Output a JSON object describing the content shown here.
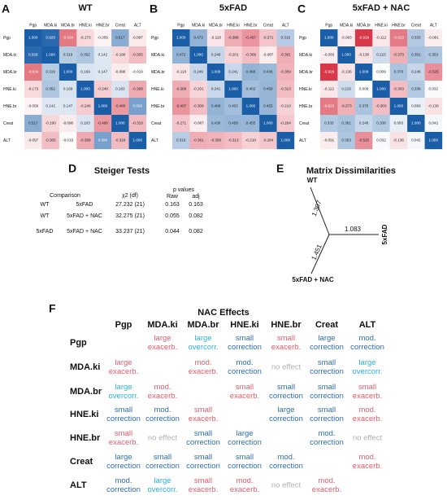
{
  "chart_data": [
    {
      "type": "heatmap",
      "panel": "A",
      "title": "WT",
      "categories": [
        "Pgp",
        "MDA.ki",
        "MDA.br",
        "HNE.ki",
        "HNE.br",
        "Creat",
        "ALT"
      ],
      "values": [
        [
          1,
          0.929,
          -0.634,
          -0.173,
          -0.056,
          0.517,
          -0.097
        ],
        [
          0.929,
          1,
          0.319,
          0.352,
          0.142,
          -0.19,
          -0.305
        ],
        [
          -0.634,
          0.319,
          1,
          0.169,
          0.147,
          -0.096,
          -0.019
        ],
        [
          -0.173,
          0.352,
          0.169,
          1,
          -0.24,
          0.163,
          -0.399
        ],
        [
          -0.056,
          0.142,
          0.147,
          -0.24,
          1,
          -0.48,
          0.59
        ],
        [
          0.517,
          -0.19,
          -0.096,
          0.163,
          -0.48,
          1,
          -0.318
        ],
        [
          -0.097,
          -0.305,
          -0.019,
          -0.399,
          0.59,
          -0.318,
          1
        ]
      ],
      "value_labels": [
        [
          "1.000",
          "0.929",
          "-0.634",
          "-0.173",
          "-0.056",
          "0.517",
          "-0.097"
        ],
        [
          "0.929",
          "1.000",
          "0.319",
          "0.352",
          "0.142",
          "-0.190",
          "-0.305"
        ],
        [
          "-0.634",
          "0.319",
          "1.000",
          "0.169",
          "0.147",
          "-0.096",
          "-0.019"
        ],
        [
          "-0.173",
          "0.352",
          "0.169",
          "1.000",
          "-0.240",
          "0.163",
          "-0.399"
        ],
        [
          "-0.056",
          "0.142",
          "0.147",
          "-0.240",
          "1.000",
          "-0.480",
          "0.590"
        ],
        [
          "0.517",
          "-0.190",
          "-0.096",
          "0.163",
          "-0.480",
          "1.000",
          "-0.318"
        ],
        [
          "-0.097",
          "-0.305",
          "-0.019",
          "-0.399",
          "0.590",
          "-0.318",
          "1.000"
        ]
      ],
      "zlim": [
        -1,
        1
      ],
      "colors": {
        "negative": "#d42a3c",
        "positive": "#1a5ea8"
      }
    },
    {
      "type": "heatmap",
      "panel": "B",
      "title": "5xFAD",
      "categories": [
        "Pgp",
        "MDA.ki",
        "MDA.br",
        "HNE.ki",
        "HNE.br",
        "Creat",
        "ALT"
      ],
      "values": [
        [
          1,
          0.472,
          -0.118,
          -0.388,
          -0.497,
          -0.271,
          0.316
        ],
        [
          0.472,
          1,
          0.249,
          -0.201,
          -0.309,
          -0.087,
          -0.381
        ],
        [
          -0.118,
          0.249,
          1,
          0.241,
          0.468,
          0.436,
          -0.359
        ],
        [
          -0.388,
          -0.201,
          0.241,
          1,
          0.402,
          0.458,
          -0.313
        ],
        [
          -0.497,
          -0.309,
          0.468,
          0.402,
          1,
          0.455,
          -0.21
        ],
        [
          -0.271,
          -0.087,
          0.436,
          0.458,
          0.455,
          1,
          -0.264
        ],
        [
          0.316,
          -0.381,
          -0.359,
          -0.313,
          -0.21,
          -0.264,
          1
        ]
      ],
      "value_labels": [
        [
          "1.000",
          "0.472",
          "-0.118",
          "-0.388",
          "-0.497",
          "-0.271",
          "0.316"
        ],
        [
          "0.472",
          "1.000",
          "0.249",
          "-0.201",
          "-0.309",
          "-0.087",
          "-0.381"
        ],
        [
          "-0.118",
          "0.249",
          "1.000",
          "0.241",
          "0.468",
          "0.436",
          "-0.359"
        ],
        [
          "-0.388",
          "-0.201",
          "0.241",
          "1.000",
          "0.402",
          "0.458",
          "-0.313"
        ],
        [
          "-0.497",
          "-0.309",
          "0.468",
          "0.402",
          "1.000",
          "0.455",
          "-0.210"
        ],
        [
          "-0.271",
          "-0.087",
          "0.436",
          "0.458",
          "0.455",
          "1.000",
          "-0.264"
        ],
        [
          "0.316",
          "-0.381",
          "-0.359",
          "-0.313",
          "-0.210",
          "-0.264",
          "1.000"
        ]
      ],
      "zlim": [
        -1,
        1
      ],
      "colors": {
        "negative": "#d42a3c",
        "positive": "#1a5ea8"
      }
    },
    {
      "type": "heatmap",
      "panel": "C",
      "title": "5xFAD + NAC",
      "categories": [
        "Pgp",
        "MDA.ki",
        "MDA.br",
        "HNE.ki",
        "HNE.br",
        "Creat",
        "ALT"
      ],
      "values": [
        [
          1,
          -0.083,
          -0.929,
          -0.112,
          -0.623,
          0.333,
          -0.091
        ],
        [
          -0.083,
          1,
          -0.136,
          0.215,
          -0.373,
          0.381,
          0.353
        ],
        [
          -0.929,
          -0.136,
          1,
          0.009,
          0.37,
          0.246,
          -0.525
        ],
        [
          -0.112,
          0.215,
          0.009,
          1,
          -0.303,
          0.338,
          0.032
        ],
        [
          -0.623,
          -0.373,
          0.37,
          -0.303,
          1,
          0.093,
          -0.136
        ],
        [
          0.333,
          0.381,
          0.246,
          0.338,
          0.093,
          1,
          0.042
        ],
        [
          -0.091,
          0.353,
          -0.525,
          0.032,
          -0.136,
          0.042,
          1
        ]
      ],
      "value_labels": [
        [
          "1.000",
          "-0.083",
          "-0.929",
          "-0.112",
          "-0.623",
          "0.333",
          "-0.091"
        ],
        [
          "-0.083",
          "1.000",
          "-0.136",
          "0.215",
          "-0.373",
          "0.381",
          "0.353"
        ],
        [
          "-0.929",
          "-0.136",
          "1.000",
          "0.009",
          "0.370",
          "0.246",
          "-0.525"
        ],
        [
          "-0.112",
          "0.215",
          "0.009",
          "1.000",
          "-0.303",
          "0.338",
          "0.032"
        ],
        [
          "-0.623",
          "-0.373",
          "0.370",
          "-0.303",
          "1.000",
          "0.093",
          "-0.136"
        ],
        [
          "0.333",
          "0.381",
          "0.246",
          "0.338",
          "0.093",
          "1.000",
          "0.042"
        ],
        [
          "-0.091",
          "0.353",
          "-0.525",
          "0.032",
          "-0.136",
          "0.042",
          "1.000"
        ]
      ],
      "zlim": [
        -1,
        1
      ],
      "colors": {
        "negative": "#d42a3c",
        "positive": "#1a5ea8"
      }
    }
  ],
  "steiger": {
    "panel": "D",
    "title": "Steiger Tests",
    "header": [
      "Comparison",
      "χ2 (df)",
      "p values",
      "Raw",
      "adj"
    ],
    "rows": [
      [
        "WT",
        "5xFAD",
        "27.232 (21)",
        "0.163",
        "0.163"
      ],
      [
        "WT",
        "5xFAD + NAC",
        "32.275 (21)",
        "0.055",
        "0.082"
      ],
      [
        "5xFAD",
        "5xFAD + NAC",
        "33.237 (21)",
        "0.044",
        "0.082"
      ]
    ]
  },
  "dissimilarities": {
    "panel": "E",
    "title": "Matrix Dissimilarities",
    "nodes": [
      "WT",
      "5xFAD",
      "5xFAD + NAC"
    ],
    "edges": [
      "1.307",
      "1.083",
      "1.451"
    ]
  },
  "nac_effects": {
    "panel": "F",
    "title": "NAC Effects",
    "columns": [
      "Pgp",
      "MDA.ki",
      "MDA.br",
      "HNE.ki",
      "HNE.br",
      "Creat",
      "ALT"
    ],
    "rows": [
      "Pgp",
      "MDA.ki",
      "MDA.br",
      "HNE.ki",
      "HNE.br",
      "Creat",
      "ALT"
    ],
    "cells": [
      [
        null,
        [
          "large",
          "exacerb."
        ],
        [
          "large",
          "overcorr."
        ],
        [
          "small",
          "correction"
        ],
        [
          "small",
          "exacerb."
        ],
        [
          "large",
          "correction"
        ],
        [
          "mod.",
          "correction"
        ]
      ],
      [
        [
          "large",
          "exacerb."
        ],
        null,
        [
          "mod.",
          "exacerb."
        ],
        [
          "mod.",
          "correction"
        ],
        [
          "no effect"
        ],
        [
          "small",
          "correction"
        ],
        [
          "large",
          "overcorr."
        ]
      ],
      [
        [
          "large",
          "overcorr."
        ],
        [
          "mod.",
          "exacerb."
        ],
        null,
        [
          "small",
          "exacerb."
        ],
        [
          "small",
          "correction"
        ],
        [
          "small",
          "correction"
        ],
        [
          "small",
          "exacerb."
        ]
      ],
      [
        [
          "small",
          "correction"
        ],
        [
          "mod.",
          "correction"
        ],
        [
          "small",
          "exacerb."
        ],
        null,
        [
          "large",
          "correction"
        ],
        [
          "small",
          "correction"
        ],
        [
          "mod.",
          "exacerb."
        ]
      ],
      [
        [
          "small",
          "exacerb."
        ],
        [
          "no effect"
        ],
        [
          "small",
          "correction"
        ],
        [
          "large",
          "correction"
        ],
        null,
        [
          "mod.",
          "correction"
        ],
        [
          "no effect"
        ]
      ],
      [
        [
          "large",
          "correction"
        ],
        [
          "small",
          "correction"
        ],
        [
          "small",
          "correction"
        ],
        [
          "small",
          "correction"
        ],
        [
          "mod.",
          "correction"
        ],
        null,
        [
          "mod.",
          "exacerb."
        ]
      ],
      [
        [
          "mod.",
          "correction"
        ],
        [
          "large",
          "overcorr."
        ],
        [
          "small",
          "exacerb."
        ],
        [
          "mod.",
          "exacerb."
        ],
        [
          "no effect"
        ],
        [
          "mod.",
          "exacerb."
        ],
        null
      ]
    ],
    "colors": {
      "exacerb.": "#e25d6b",
      "correction": "#2d6db3",
      "overcorr.": "#2bb1de",
      "no effect": "#b0b0b0"
    }
  }
}
